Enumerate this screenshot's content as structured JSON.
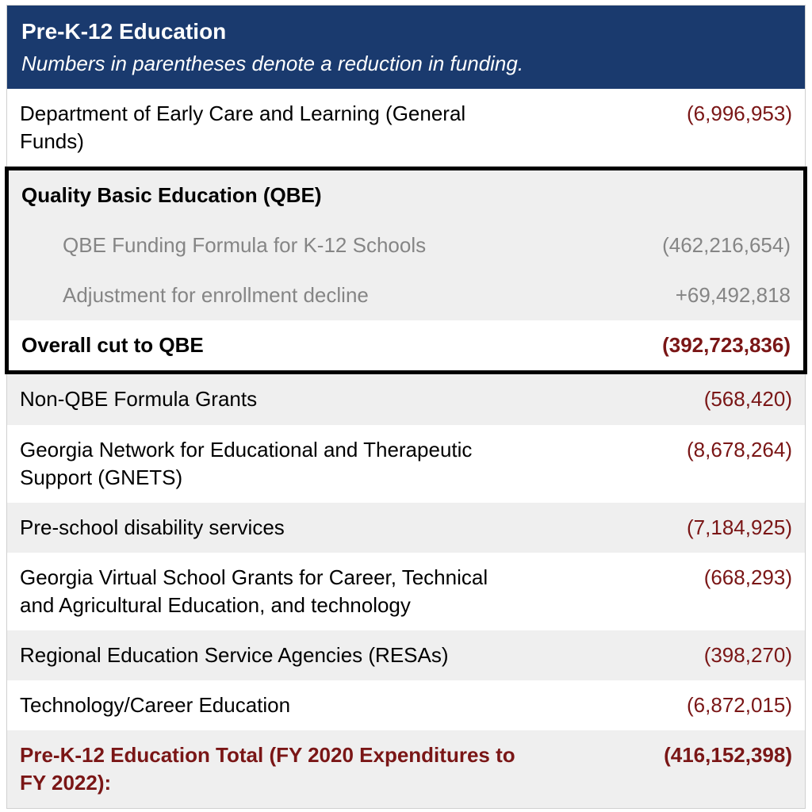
{
  "header": {
    "title": "Pre-K-12 Education",
    "subtitle": "Numbers in parentheses denote a reduction in funding."
  },
  "rows": {
    "decl": {
      "label": "Department of Early Care and Learning (General Funds)",
      "value": "(6,996,953)"
    },
    "qbe_header": {
      "label": "Quality Basic Education (QBE)",
      "value": ""
    },
    "qbe_formula": {
      "label": "QBE Funding Formula for K-12 Schools",
      "value": "(462,216,654)"
    },
    "qbe_adjust": {
      "label": "Adjustment for enrollment decline",
      "value": "+69,492,818"
    },
    "qbe_overall": {
      "label": "Overall cut to QBE",
      "value": "(392,723,836)"
    },
    "nonqbe": {
      "label": "Non-QBE Formula Grants",
      "value": "(568,420)"
    },
    "gnets": {
      "label": "Georgia Network for Educational and Therapeutic Support (GNETS)",
      "value": "(8,678,264)"
    },
    "preschool": {
      "label": " Pre-school disability services",
      "value": "(7,184,925)"
    },
    "virtual": {
      "label": " Georgia Virtual School Grants for Career, Technical and Agricultural Education, and technology",
      "value": "(668,293)"
    },
    "resas": {
      "label": " Regional Education Service Agencies (RESAs)",
      "value": "(398,270)"
    },
    "techcareer": {
      "label": " Technology/Career Education",
      "value": "(6,872,015)"
    },
    "total": {
      "label": "Pre-K-12 Education Total (FY 2020 Expenditures to FY 2022):",
      "value": "(416,152,398)"
    }
  },
  "colors": {
    "header_bg": "#1a3a6e",
    "header_text": "#ffffff",
    "negative": "#7a1616",
    "gray_bg": "#efefef",
    "gray_text": "#858585",
    "border": "#d0d0d0",
    "box_border": "#000000"
  }
}
